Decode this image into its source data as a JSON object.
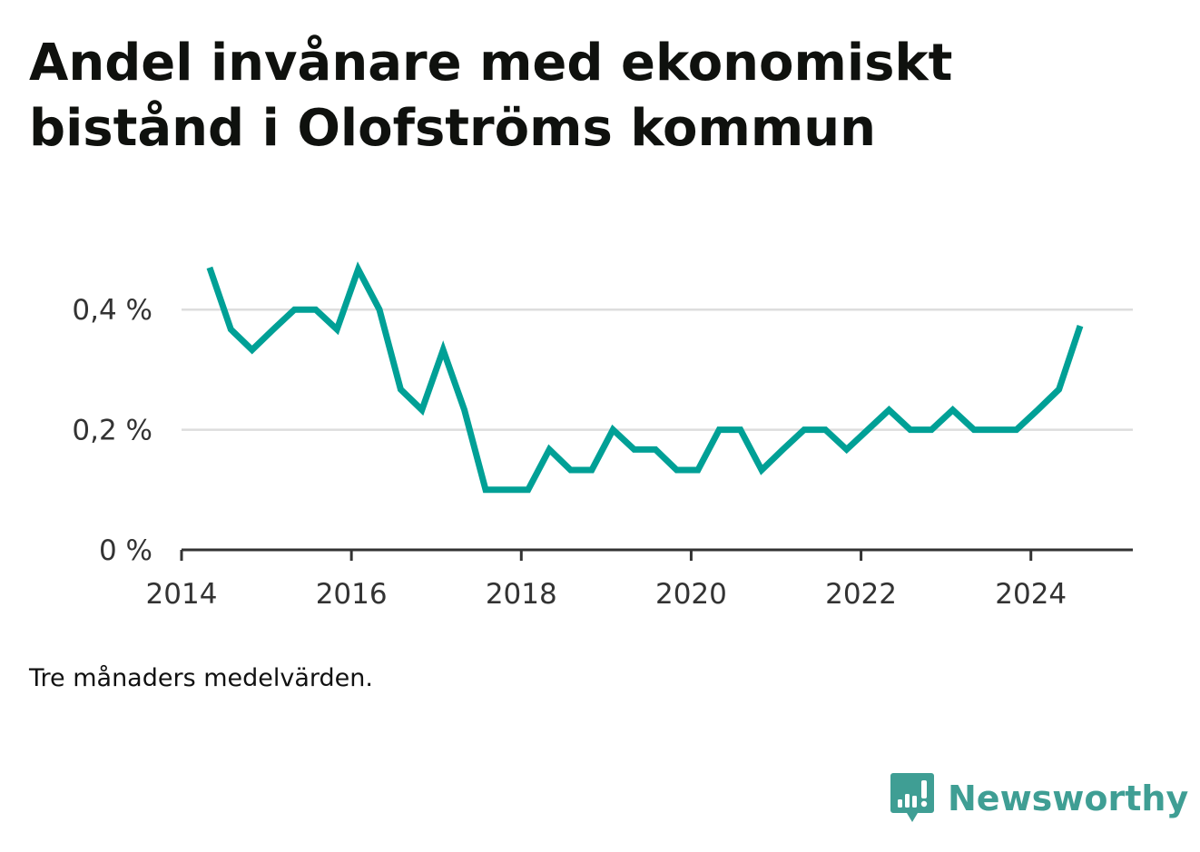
{
  "title": "Andel invånare med ekonomiskt bistånd i Olofströms kommun",
  "footnote": "Tre månaders medelvärden.",
  "brand": {
    "name": "Newsworthy",
    "icon": "newsworthy-logo-icon",
    "color": "#3f9e94"
  },
  "colors": {
    "line": "#00a096",
    "grid": "#dddddd",
    "axis": "#333333"
  },
  "chart_data": {
    "type": "line",
    "title": "Andel invånare med ekonomiskt bistånd i Olofströms kommun",
    "xlabel": "",
    "ylabel": "",
    "xlim": [
      2014,
      2025.2
    ],
    "ylim": [
      0,
      0.5
    ],
    "x_ticks": [
      2014,
      2016,
      2018,
      2020,
      2022,
      2024
    ],
    "x_tick_labels": [
      "2014",
      "2016",
      "2018",
      "2020",
      "2022",
      "2024"
    ],
    "y_ticks": [
      0,
      0.2,
      0.4
    ],
    "y_tick_labels": [
      "0 %",
      "0,2 %",
      "0,4 %"
    ],
    "grid": true,
    "series": [
      {
        "x": [
          2014.33,
          2014.58,
          2014.83,
          2015.08,
          2015.33,
          2015.58,
          2015.83,
          2016.08,
          2016.33,
          2016.58,
          2016.83,
          2017.08,
          2017.33,
          2017.58,
          2017.83,
          2018.08,
          2018.33,
          2018.58,
          2018.83,
          2019.08,
          2019.33,
          2019.58,
          2019.83,
          2020.08,
          2020.33,
          2020.58,
          2020.83,
          2021.08,
          2021.33,
          2021.58,
          2021.83,
          2022.08,
          2022.33,
          2022.58,
          2022.83,
          2023.08,
          2023.33,
          2023.58,
          2023.83,
          2024.08,
          2024.33,
          2024.58
        ],
        "values": [
          0.47,
          0.367,
          0.333,
          0.367,
          0.4,
          0.4,
          0.367,
          0.467,
          0.4,
          0.267,
          0.233,
          0.333,
          0.233,
          0.1,
          0.1,
          0.1,
          0.167,
          0.133,
          0.133,
          0.2,
          0.167,
          0.167,
          0.133,
          0.133,
          0.2,
          0.2,
          0.133,
          0.167,
          0.2,
          0.2,
          0.167,
          0.2,
          0.233,
          0.2,
          0.2,
          0.233,
          0.2,
          0.2,
          0.2,
          0.233,
          0.267,
          0.373
        ]
      }
    ]
  }
}
